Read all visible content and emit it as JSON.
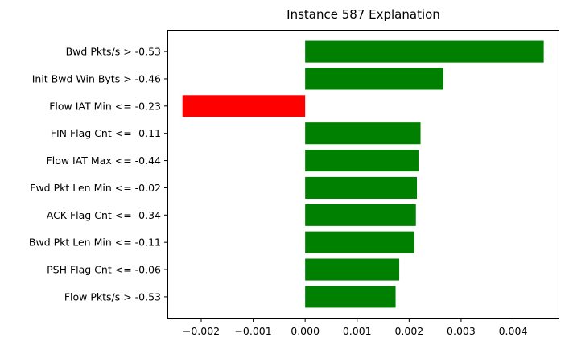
{
  "chart_data": {
    "type": "bar",
    "orientation": "horizontal",
    "title": "Instance 587 Explanation",
    "xlabel": "",
    "ylabel": "",
    "xlim": [
      -0.00265,
      0.00489
    ],
    "xticks": [
      -0.002,
      -0.001,
      0.0,
      0.001,
      0.002,
      0.003,
      0.004
    ],
    "xtick_labels": [
      "−0.002",
      "−0.001",
      "0.000",
      "0.001",
      "0.002",
      "0.003",
      "0.004"
    ],
    "grid": false,
    "categories": [
      "Bwd Pkts/s > -0.53",
      "Init Bwd Win Byts > -0.46",
      "Flow IAT Min <= -0.23",
      "FIN Flag Cnt <= -0.11",
      "Flow IAT Max <= -0.44",
      "Fwd Pkt Len Min <= -0.02",
      "ACK Flag Cnt <= -0.34",
      "Bwd Pkt Len Min <= -0.11",
      "PSH Flag Cnt <= -0.06",
      "Flow Pkts/s > -0.53"
    ],
    "values": [
      0.00459,
      0.00266,
      -0.00236,
      0.00222,
      0.00218,
      0.00215,
      0.00213,
      0.0021,
      0.00181,
      0.00174
    ],
    "colors": {
      "positive": "#008000",
      "negative": "#ff0000"
    }
  }
}
